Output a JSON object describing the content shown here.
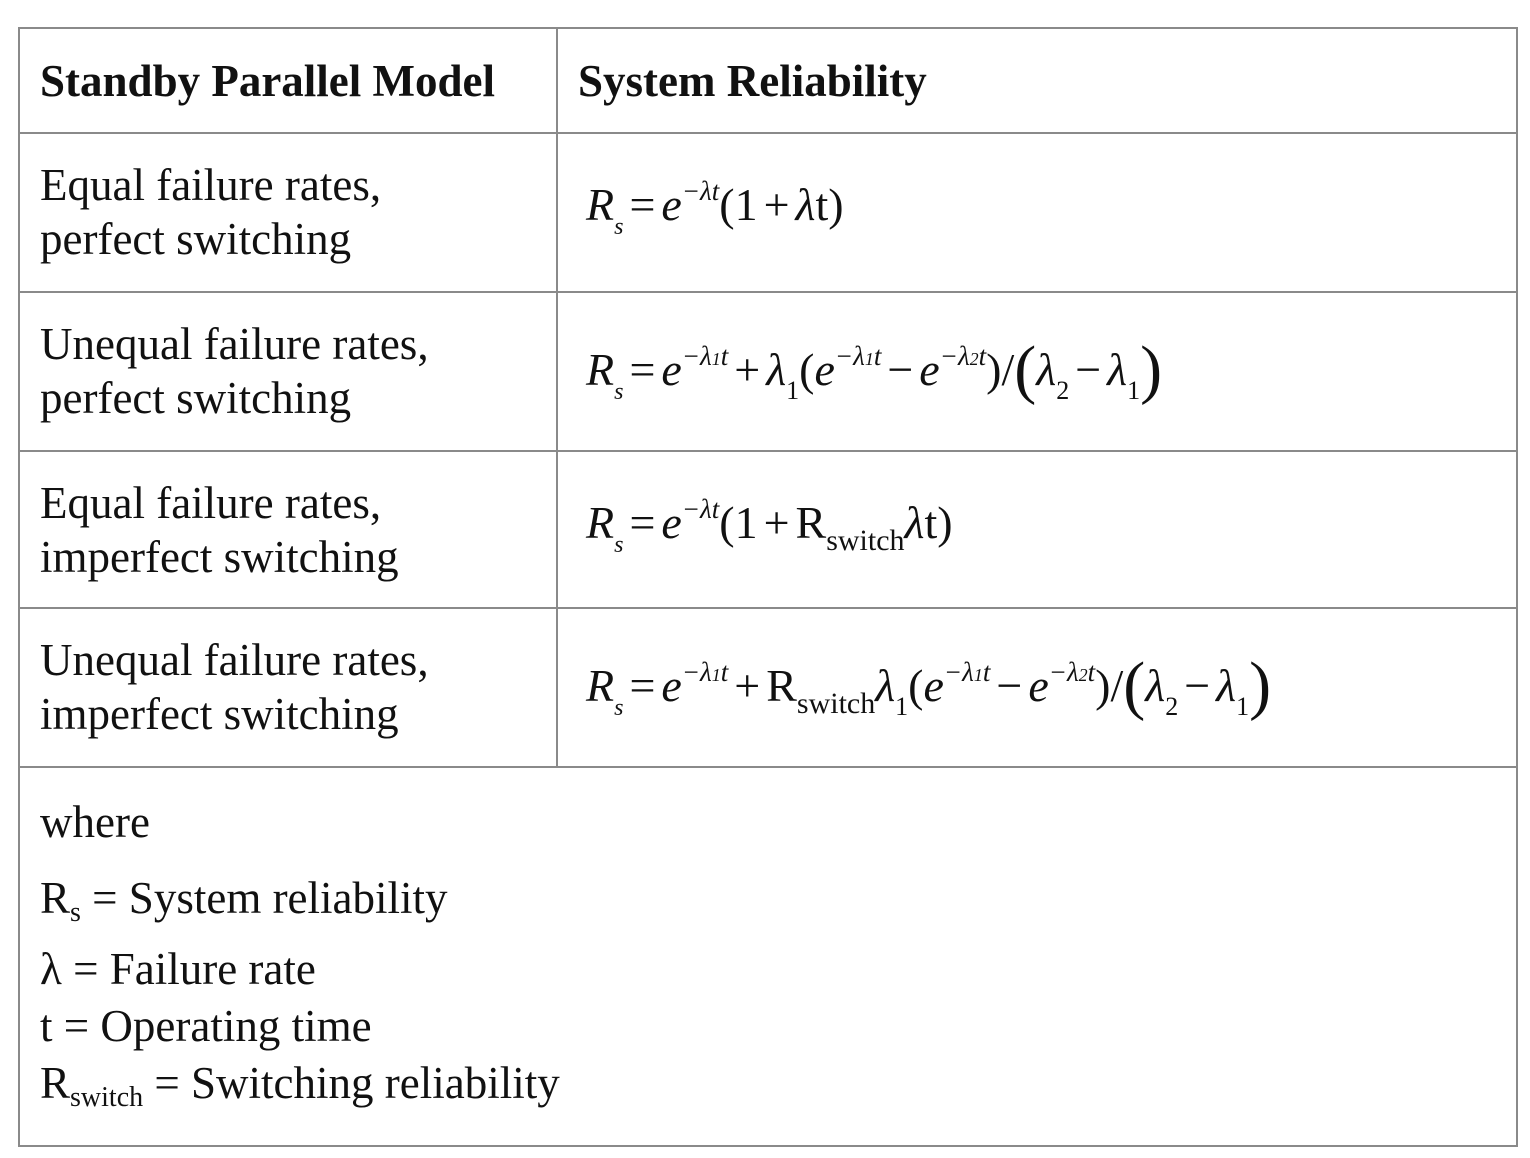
{
  "table": {
    "headers": {
      "model": "Standby Parallel Model",
      "reliability": "System Reliability"
    },
    "rows": [
      {
        "model_line1": "Equal failure rates,",
        "model_line2": "perfect switching"
      },
      {
        "model_line1": "Unequal failure rates,",
        "model_line2": "perfect switching"
      },
      {
        "model_line1": "Equal failure rates,",
        "model_line2": "imperfect switching"
      },
      {
        "model_line1": "Unequal failure rates,",
        "model_line2": "imperfect switching"
      }
    ],
    "legend": {
      "where": "where",
      "items": [
        {
          "symbol": "R",
          "sub": "s",
          "text": " = System reliability"
        },
        {
          "symbol": "λ",
          "sub": "",
          "text": " = Failure rate"
        },
        {
          "symbol": "t",
          "sub": "",
          "text": " = Operating time"
        },
        {
          "symbol": "R",
          "sub": "switch",
          "text": " = Switching reliability"
        }
      ]
    }
  }
}
